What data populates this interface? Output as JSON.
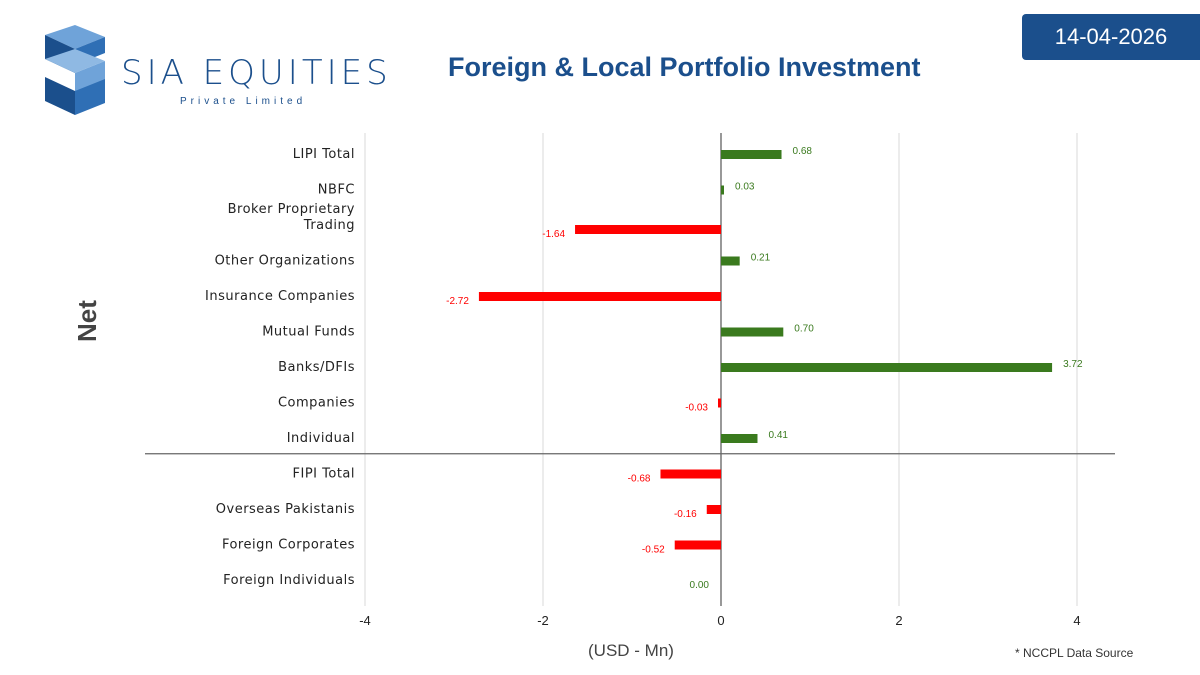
{
  "header": {
    "brand_name": "SIA EQUITIES",
    "brand_sub": "Private Limited",
    "title": "Foreign & Local Portfolio Investment",
    "date": "14-04-2026"
  },
  "colors": {
    "brand": "#1b4f8c",
    "positive": "#3a7a1e",
    "negative": "#ff0000"
  },
  "footer": {
    "source_note": "* NCCPL Data Source"
  },
  "chart_data": {
    "type": "bar",
    "orientation": "horizontal",
    "ylabel": "Net",
    "xlabel": "(USD - Mn)",
    "xlim": [
      -4,
      4.4
    ],
    "xticks": [
      -4,
      -2,
      0,
      2,
      4
    ],
    "grid": true,
    "categories": [
      [
        "LIPI Total"
      ],
      [
        "NBFC"
      ],
      [
        "Broker Proprietary",
        "Trading"
      ],
      [
        "Other Organizations"
      ],
      [
        "Insurance Companies"
      ],
      [
        "Mutual Funds"
      ],
      [
        "Banks/DFIs"
      ],
      [
        "Companies"
      ],
      [
        "Individual"
      ],
      [
        "FIPI Total"
      ],
      [
        "Overseas Pakistanis"
      ],
      [
        "Foreign Corporates"
      ],
      [
        "Foreign Individuals"
      ]
    ],
    "values": [
      0.68,
      0.03,
      -1.64,
      0.21,
      -2.72,
      0.7,
      3.72,
      -0.03,
      0.41,
      -0.68,
      -0.16,
      -0.52,
      0.0
    ],
    "value_labels": [
      "0.68",
      "0.03",
      "-1.64",
      "0.21",
      "-2.72",
      "0.70",
      "3.72",
      "-0.03",
      "0.41",
      "-0.68",
      "-0.16",
      "-0.52",
      "0.00"
    ],
    "divider_after_index": 8
  }
}
